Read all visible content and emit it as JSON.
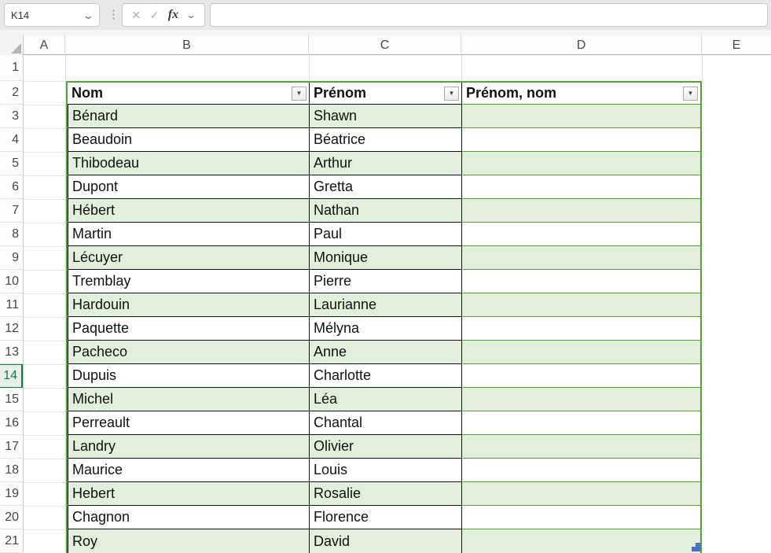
{
  "formula_bar": {
    "name_box": "K14",
    "name_box_dropdown_icon": "⌄",
    "splitter_icon": "⋮",
    "cancel_icon": "✕",
    "enter_icon": "✓",
    "insert_function_label": "fx",
    "function_dropdown_icon": "⌄",
    "formula_value": ""
  },
  "sheet": {
    "column_headers": [
      "A",
      "B",
      "C",
      "D",
      "E"
    ],
    "row_headers": [
      1,
      2,
      3,
      4,
      5,
      6,
      7,
      8,
      9,
      10,
      11,
      12,
      13,
      14,
      15,
      16,
      17,
      18,
      19,
      20,
      21
    ],
    "active_row": 14,
    "filter_icon": "▼",
    "table": {
      "headers": [
        "Nom",
        "Prénom",
        "Prénom, nom"
      ],
      "rows": [
        [
          "Bénard",
          "Shawn",
          ""
        ],
        [
          "Beaudoin",
          "Béatrice",
          ""
        ],
        [
          "Thibodeau",
          "Arthur",
          ""
        ],
        [
          "Dupont",
          "Gretta",
          ""
        ],
        [
          "Hébert",
          "Nathan",
          ""
        ],
        [
          "Martin",
          "Paul",
          ""
        ],
        [
          "Lécuyer",
          "Monique",
          ""
        ],
        [
          "Tremblay",
          "Pierre",
          ""
        ],
        [
          "Hardouin",
          "Laurianne",
          ""
        ],
        [
          "Paquette",
          "Mélyna",
          ""
        ],
        [
          "Pacheco",
          "Anne",
          ""
        ],
        [
          "Dupuis",
          "Charlotte",
          ""
        ],
        [
          "Michel",
          "Léa",
          ""
        ],
        [
          "Perreault",
          "Chantal",
          ""
        ],
        [
          "Landry",
          "Olivier",
          ""
        ],
        [
          "Maurice",
          "Louis",
          ""
        ],
        [
          "Hebert",
          "Rosalie",
          ""
        ],
        [
          "Chagnon",
          "Florence",
          ""
        ],
        [
          "Roy",
          "David",
          ""
        ]
      ]
    },
    "colors": {
      "banding_green": "#E2EFDA",
      "table_border_green": "#56A038",
      "active_accent_green": "#107C41",
      "resize_handle_blue": "#4472C4"
    }
  }
}
